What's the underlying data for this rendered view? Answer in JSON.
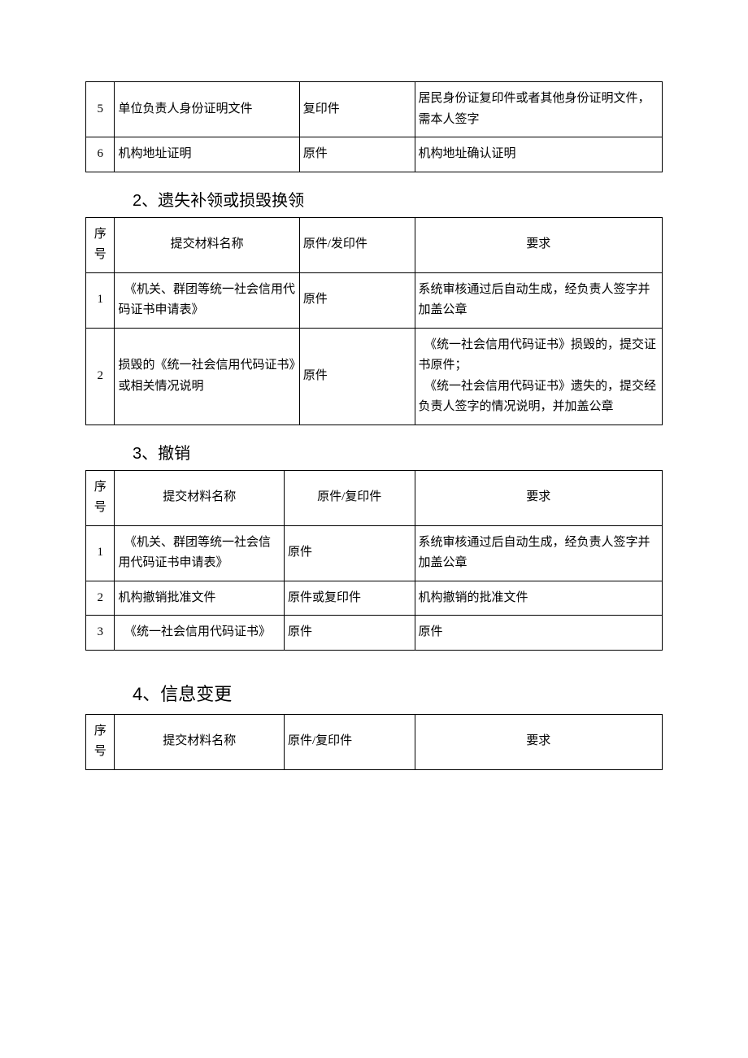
{
  "colors": {
    "background": "#ffffff",
    "text": "#000000",
    "border": "#000000"
  },
  "headers": {
    "seq": "序号",
    "name": "提交材料名称",
    "type_a": "原件/发印件",
    "type_b": "原件/复印件",
    "req": "要求"
  },
  "table1": {
    "rows": [
      {
        "n": "5",
        "name": "单位负责人身份证明文件",
        "type": "复印件",
        "req": "居民身份证复印件或者其他身份证明文件，需本人签字"
      },
      {
        "n": "6",
        "name": "机构地址证明",
        "type": "原件",
        "req": "机构地址确认证明"
      }
    ]
  },
  "section2": {
    "title": "2、遗失补领或损毁换领",
    "rows": [
      {
        "n": "1",
        "name": "　《机关、群团等统一社会信用代码证书申请表》",
        "type": "原件",
        "req": "系统审核通过后自动生成，经负责人签字并加盖公章"
      },
      {
        "n": "2",
        "name": "损毁的《统一社会信用代码证书》或相关情况说明",
        "type": "原件",
        "req": "　《统一社会信用代码证书》损毁的，提交证书原件；\n　《统一社会信用代码证书》遗失的，提交经负责人签字的情况说明，并加盖公章"
      }
    ]
  },
  "section3": {
    "title": "3、撤销",
    "rows": [
      {
        "n": "1",
        "name": "　《机关、群团等统一社会信用代码证书申请表》",
        "type": "原件",
        "req": "系统审核通过后自动生成，经负责人签字并加盖公章"
      },
      {
        "n": "2",
        "name": "机构撤销批准文件",
        "type": "原件或复印件",
        "req": "机构撤销的批准文件"
      },
      {
        "n": "3",
        "name": "　《统一社会信用代码证书》",
        "type": "原件",
        "req": "原件"
      }
    ]
  },
  "section4": {
    "title": "4、信息变更"
  }
}
